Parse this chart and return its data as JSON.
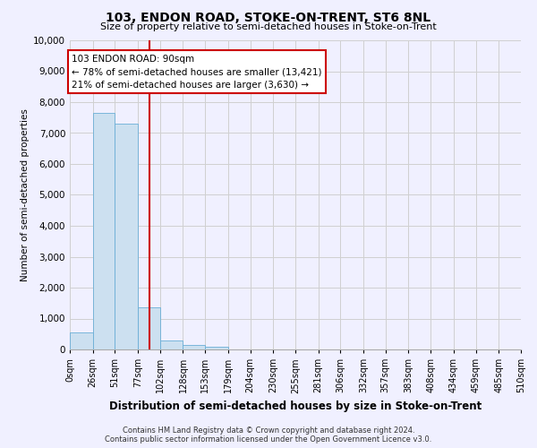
{
  "title": "103, ENDON ROAD, STOKE-ON-TRENT, ST6 8NL",
  "subtitle": "Size of property relative to semi-detached houses in Stoke-on-Trent",
  "xlabel": "Distribution of semi-detached houses by size in Stoke-on-Trent",
  "ylabel": "Number of semi-detached properties",
  "footnote1": "Contains HM Land Registry data © Crown copyright and database right 2024.",
  "footnote2": "Contains public sector information licensed under the Open Government Licence v3.0.",
  "bin_labels": [
    "0sqm",
    "26sqm",
    "51sqm",
    "77sqm",
    "102sqm",
    "128sqm",
    "153sqm",
    "179sqm",
    "204sqm",
    "230sqm",
    "255sqm",
    "281sqm",
    "306sqm",
    "332sqm",
    "357sqm",
    "383sqm",
    "408sqm",
    "434sqm",
    "459sqm",
    "485sqm",
    "510sqm"
  ],
  "bar_values": [
    550,
    7650,
    7300,
    1350,
    300,
    150,
    80,
    0,
    0,
    0,
    0,
    0,
    0,
    0,
    0,
    0,
    0,
    0,
    0,
    0
  ],
  "bar_color": "#cce0f0",
  "bar_edge_color": "#6aaed6",
  "property_sqm": 90,
  "vline_color": "#cc0000",
  "annotation_text1": "103 ENDON ROAD: 90sqm",
  "annotation_text2": "← 78% of semi-detached houses are smaller (13,421)",
  "annotation_text3": "21% of semi-detached houses are larger (3,630) →",
  "annotation_box_edge": "#cc0000",
  "ylim": [
    0,
    10000
  ],
  "yticks": [
    0,
    1000,
    2000,
    3000,
    4000,
    5000,
    6000,
    7000,
    8000,
    9000,
    10000
  ],
  "grid_color": "#d0d0d0",
  "bg_color": "#f0f0ff"
}
